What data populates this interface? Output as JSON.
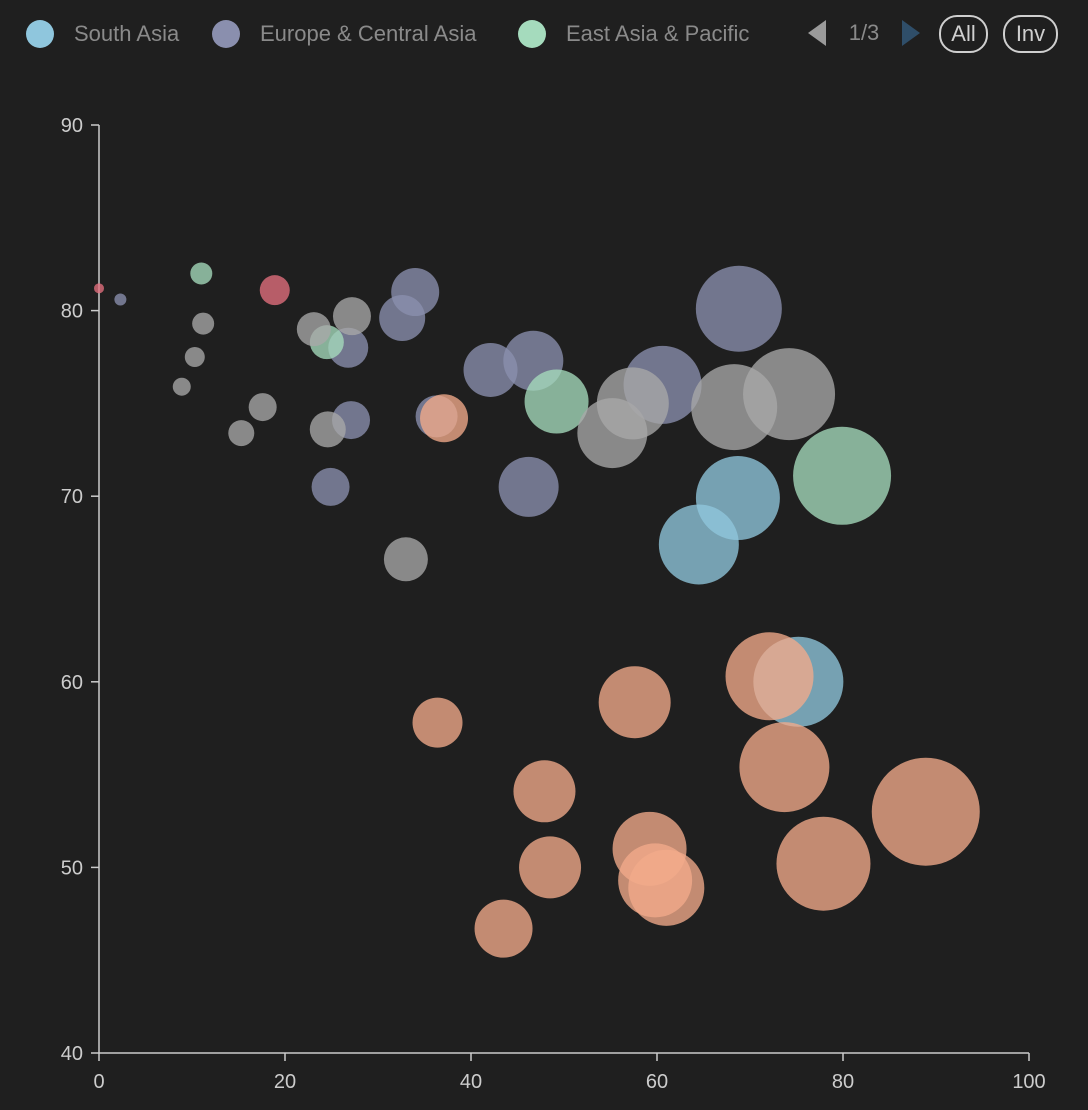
{
  "legend": {
    "items": [
      {
        "label": "South Asia",
        "color": "#8fc6dd"
      },
      {
        "label": "Europe & Central Asia",
        "color": "#8a8fae"
      },
      {
        "label": "East Asia & Pacific",
        "color": "#a5dbbd"
      }
    ],
    "page": "1/3",
    "all_label": "All",
    "inv_label": "Inv"
  },
  "chart_data": {
    "type": "scatter",
    "title": "",
    "xlabel": "",
    "ylabel": "",
    "xlim": [
      0,
      100
    ],
    "ylim": [
      40,
      90
    ],
    "xticks": [
      0,
      20,
      40,
      60,
      80,
      100
    ],
    "yticks": [
      40,
      50,
      60,
      70,
      80,
      90
    ],
    "bubble": true,
    "series": [
      {
        "color": "#8fc6dd",
        "points": [
          {
            "x": 64.5,
            "y": 67.4,
            "r": 40
          },
          {
            "x": 68.7,
            "y": 69.9,
            "r": 42
          },
          {
            "x": 75.2,
            "y": 60.0,
            "r": 45
          }
        ]
      },
      {
        "color": "#8a8fae",
        "points": [
          {
            "x": 2.3,
            "y": 80.6,
            "r": 6
          },
          {
            "x": 27.1,
            "y": 74.1,
            "r": 19
          },
          {
            "x": 24.9,
            "y": 70.5,
            "r": 19
          },
          {
            "x": 26.8,
            "y": 78.0,
            "r": 20
          },
          {
            "x": 32.6,
            "y": 79.6,
            "r": 23
          },
          {
            "x": 34.0,
            "y": 81.0,
            "r": 24
          },
          {
            "x": 36.3,
            "y": 74.3,
            "r": 21
          },
          {
            "x": 42.1,
            "y": 76.8,
            "r": 27
          },
          {
            "x": 46.7,
            "y": 77.3,
            "r": 30
          },
          {
            "x": 46.2,
            "y": 70.5,
            "r": 30
          },
          {
            "x": 60.6,
            "y": 76.0,
            "r": 39
          },
          {
            "x": 68.8,
            "y": 80.1,
            "r": 43
          }
        ]
      },
      {
        "color": "#a5dbbd",
        "points": [
          {
            "x": 11.0,
            "y": 82.0,
            "r": 11
          },
          {
            "x": 24.5,
            "y": 78.3,
            "r": 17
          },
          {
            "x": 49.2,
            "y": 75.1,
            "r": 32
          },
          {
            "x": 79.9,
            "y": 71.1,
            "r": 49
          }
        ]
      },
      {
        "color": "#a8a8a8",
        "points": [
          {
            "x": 8.9,
            "y": 75.9,
            "r": 9
          },
          {
            "x": 10.3,
            "y": 77.5,
            "r": 10
          },
          {
            "x": 11.2,
            "y": 79.3,
            "r": 11
          },
          {
            "x": 15.3,
            "y": 73.4,
            "r": 13
          },
          {
            "x": 17.6,
            "y": 74.8,
            "r": 14
          },
          {
            "x": 23.1,
            "y": 79.0,
            "r": 17
          },
          {
            "x": 24.6,
            "y": 73.6,
            "r": 18
          },
          {
            "x": 27.2,
            "y": 79.7,
            "r": 19
          },
          {
            "x": 33.0,
            "y": 66.6,
            "r": 22
          },
          {
            "x": 55.2,
            "y": 73.4,
            "r": 35
          },
          {
            "x": 57.4,
            "y": 75.0,
            "r": 36
          },
          {
            "x": 68.3,
            "y": 74.8,
            "r": 43
          },
          {
            "x": 74.2,
            "y": 75.5,
            "r": 46
          }
        ]
      },
      {
        "color": "#f2aa8a",
        "points": [
          {
            "x": 36.4,
            "y": 57.8,
            "r": 25
          },
          {
            "x": 37.1,
            "y": 74.2,
            "r": 24
          },
          {
            "x": 43.5,
            "y": 46.7,
            "r": 29
          },
          {
            "x": 47.9,
            "y": 54.1,
            "r": 31
          },
          {
            "x": 48.5,
            "y": 50.0,
            "r": 31
          },
          {
            "x": 57.6,
            "y": 58.9,
            "r": 36
          },
          {
            "x": 59.2,
            "y": 51.0,
            "r": 37
          },
          {
            "x": 61.0,
            "y": 48.9,
            "r": 38
          },
          {
            "x": 59.8,
            "y": 49.3,
            "r": 37
          },
          {
            "x": 72.1,
            "y": 60.3,
            "r": 44
          },
          {
            "x": 73.7,
            "y": 55.4,
            "r": 45
          },
          {
            "x": 77.9,
            "y": 50.2,
            "r": 47
          },
          {
            "x": 88.9,
            "y": 53.0,
            "r": 54
          }
        ]
      },
      {
        "color": "#e36f7e",
        "points": [
          {
            "x": 0.0,
            "y": 81.2,
            "r": 5
          },
          {
            "x": 18.9,
            "y": 81.1,
            "r": 15
          }
        ]
      }
    ]
  }
}
